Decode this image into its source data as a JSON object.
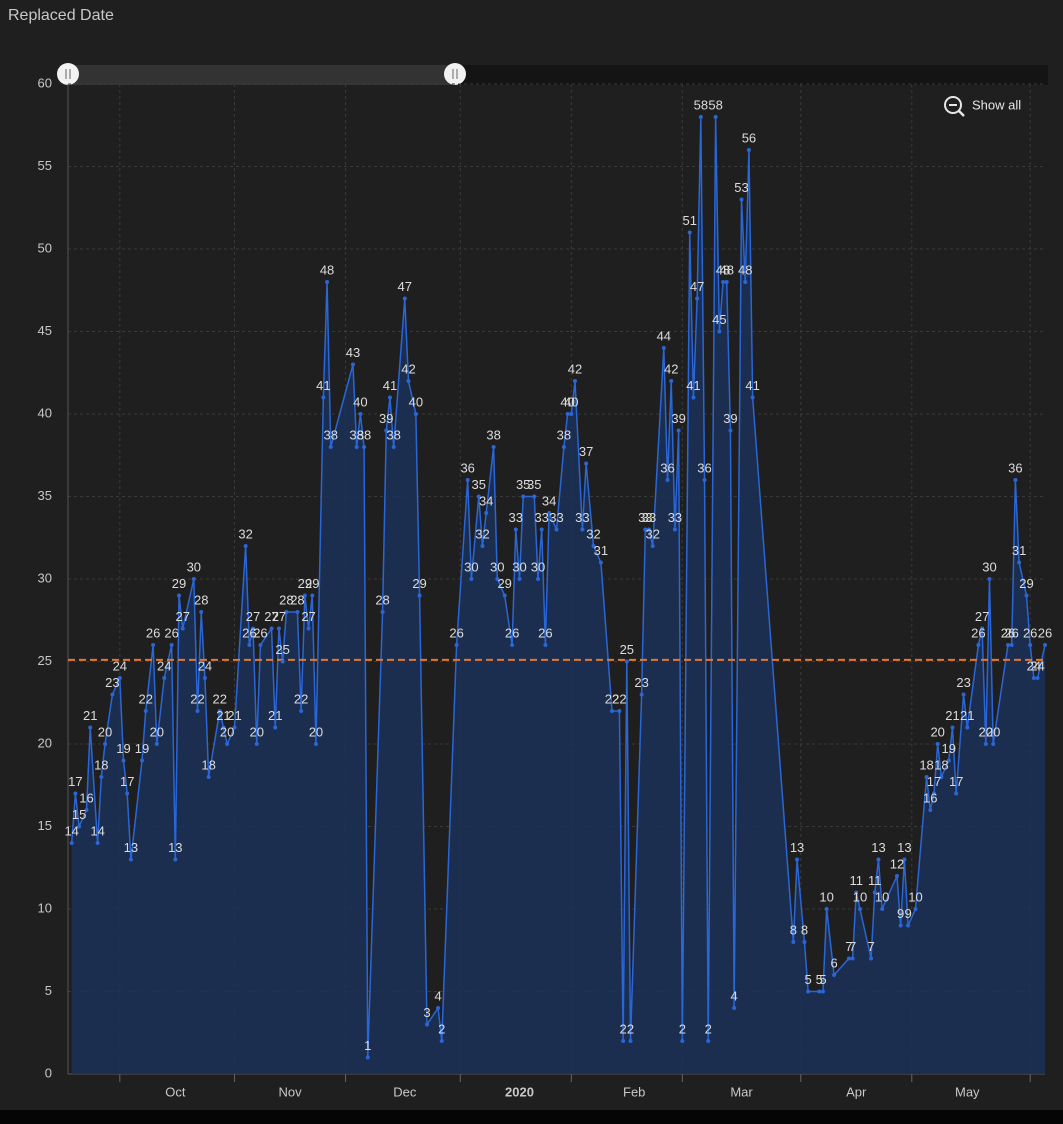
{
  "chart_data": {
    "type": "line",
    "title": "Replaced Date",
    "button": "Show all",
    "x": [
      1,
      2,
      3,
      5,
      6,
      8,
      9,
      10,
      12,
      14,
      15,
      16,
      17,
      20,
      21,
      23,
      24,
      26,
      28,
      29,
      30,
      31,
      34,
      35,
      36,
      37,
      38,
      41,
      42,
      43,
      45,
      48,
      49,
      50,
      51,
      52,
      55,
      56,
      57,
      58,
      59,
      62,
      63,
      64,
      65,
      66,
      67,
      69,
      70,
      71,
      77,
      78,
      79,
      80,
      81,
      85,
      86,
      87,
      88,
      91,
      92,
      94,
      95,
      97,
      100,
      101,
      105,
      108,
      109,
      111,
      112,
      113,
      115,
      116,
      118,
      120,
      121,
      122,
      123,
      126,
      127,
      128,
      129,
      130,
      132,
      134,
      135,
      136,
      137,
      139,
      140,
      142,
      144,
      147,
      149,
      150,
      151,
      152,
      155,
      156,
      157,
      158,
      161,
      162,
      163,
      164,
      165,
      166,
      168,
      169,
      170,
      171,
      172,
      173,
      175,
      176,
      177,
      178,
      179,
      180,
      182,
      183,
      184,
      185,
      196,
      197,
      199,
      200,
      203,
      204,
      205,
      207,
      211,
      212,
      213,
      214,
      217,
      218,
      219,
      220,
      224,
      225,
      226,
      227,
      229,
      232,
      233,
      234,
      235,
      236,
      238,
      239,
      240,
      242,
      243,
      246,
      247,
      248,
      249,
      250,
      254,
      255,
      256,
      257,
      259,
      260,
      261,
      262,
      264
    ],
    "values": [
      14,
      17,
      15,
      16,
      21,
      14,
      18,
      20,
      23,
      24,
      19,
      17,
      13,
      19,
      22,
      26,
      20,
      24,
      26,
      13,
      29,
      27,
      30,
      22,
      28,
      24,
      18,
      22,
      21,
      20,
      21,
      32,
      26,
      27,
      20,
      26,
      27,
      21,
      27,
      25,
      28,
      28,
      22,
      29,
      27,
      29,
      20,
      41,
      48,
      38,
      43,
      38,
      40,
      38,
      1,
      28,
      39,
      41,
      38,
      47,
      42,
      40,
      29,
      3,
      4,
      2,
      26,
      36,
      30,
      35,
      32,
      34,
      38,
      30,
      29,
      26,
      33,
      30,
      35,
      35,
      30,
      33,
      26,
      34,
      33,
      38,
      40,
      40,
      42,
      33,
      37,
      32,
      31,
      22,
      22,
      2,
      25,
      2,
      23,
      33,
      33,
      32,
      44,
      36,
      42,
      33,
      39,
      2,
      51,
      41,
      47,
      58,
      36,
      2,
      58,
      45,
      48,
      48,
      39,
      4,
      53,
      48,
      56,
      41,
      8,
      13,
      8,
      5,
      5,
      5,
      10,
      6,
      7,
      7,
      11,
      10,
      7,
      11,
      13,
      10,
      12,
      9,
      13,
      9,
      10,
      18,
      16,
      17,
      20,
      18,
      19,
      21,
      17,
      23,
      21,
      26,
      27,
      20,
      30,
      20,
      26,
      26,
      36,
      31,
      29,
      26,
      24,
      24,
      26
    ],
    "color": "#2a66d6",
    "area_color": "#1b3158",
    "reference_line": {
      "value": 25.1,
      "color": "#e8762c"
    },
    "xlim": [
      0,
      264
    ],
    "xticks": [
      {
        "value": 29,
        "label": "Oct"
      },
      {
        "value": 60,
        "label": "Nov"
      },
      {
        "value": 91,
        "label": "Dec"
      },
      {
        "value": 122,
        "label": "2020"
      },
      {
        "value": 153,
        "label": "Feb"
      },
      {
        "value": 182,
        "label": "Mar"
      },
      {
        "value": 213,
        "label": "Apr"
      },
      {
        "value": 243,
        "label": "May"
      }
    ],
    "xgrid": [
      14,
      45,
      75,
      106,
      136,
      166,
      198,
      228,
      260
    ],
    "ylim": [
      0,
      60
    ],
    "yticks": [
      0,
      5,
      10,
      15,
      20,
      25,
      30,
      35,
      40,
      45,
      50,
      55,
      60
    ],
    "grid": true
  }
}
